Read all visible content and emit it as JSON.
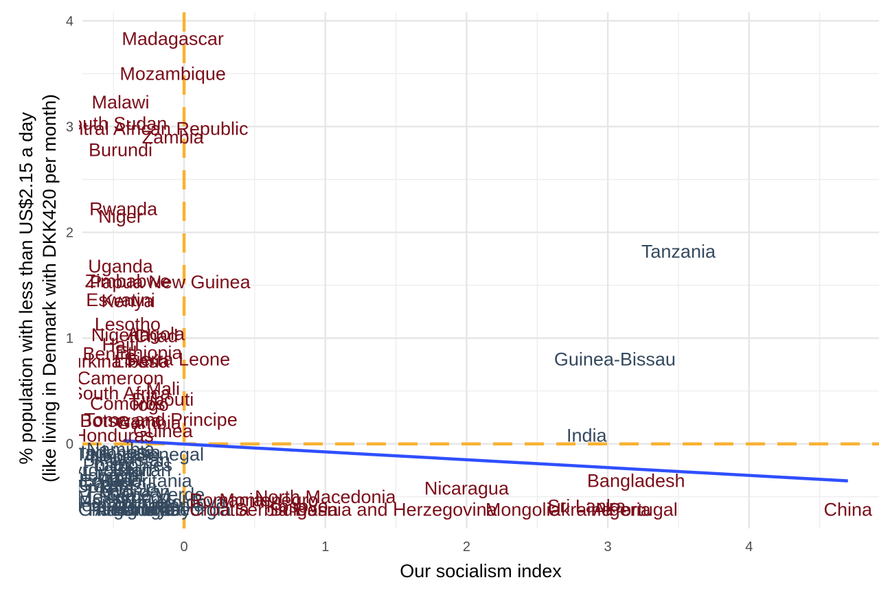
{
  "chart_data": {
    "type": "scatter",
    "title": "",
    "xlabel": "Our socialism index",
    "ylabel_lines": [
      "% population with less than US$2.15 a day",
      "(like living in Denmark with DKK420 per month)"
    ],
    "xlim": [
      -0.72,
      4.92
    ],
    "ylim": [
      -0.8,
      4.08
    ],
    "x_ticks": [
      0,
      1,
      2,
      3,
      4
    ],
    "y_ticks": [
      0,
      1,
      2,
      3,
      4
    ],
    "grid": true,
    "reference_lines": {
      "x": 0,
      "y": 0,
      "color": "#F9B233",
      "style": "dashed"
    },
    "trend_line": {
      "x": [
        -0.43,
        4.7
      ],
      "y": [
        0.03,
        -0.35
      ],
      "color": "#2F4FFF"
    },
    "colors": {
      "dark_red": "#7B0E1A",
      "slate": "#34495E"
    },
    "points": [
      {
        "label": "Madagascar",
        "x": -0.08,
        "y": 3.83,
        "color": "dark_red"
      },
      {
        "label": "Mozambique",
        "x": -0.08,
        "y": 3.5,
        "color": "dark_red"
      },
      {
        "label": "Malawi",
        "x": -0.45,
        "y": 3.23,
        "color": "dark_red"
      },
      {
        "label": "South Sudan",
        "x": -0.5,
        "y": 3.03,
        "color": "dark_red"
      },
      {
        "label": "Central African Republic",
        "x": -0.25,
        "y": 2.98,
        "color": "dark_red"
      },
      {
        "label": "Zambia",
        "x": -0.08,
        "y": 2.9,
        "color": "dark_red"
      },
      {
        "label": "Burundi",
        "x": -0.45,
        "y": 2.78,
        "color": "dark_red"
      },
      {
        "label": "Rwanda",
        "x": -0.43,
        "y": 2.22,
        "color": "dark_red"
      },
      {
        "label": "Niger",
        "x": -0.45,
        "y": 2.15,
        "color": "dark_red"
      },
      {
        "label": "Tanzania",
        "x": 3.5,
        "y": 1.82,
        "color": "slate"
      },
      {
        "label": "Uganda",
        "x": -0.45,
        "y": 1.68,
        "color": "dark_red"
      },
      {
        "label": "Zimbabwe",
        "x": -0.4,
        "y": 1.54,
        "color": "dark_red"
      },
      {
        "label": "Papua New Guinea",
        "x": -0.1,
        "y": 1.53,
        "color": "dark_red"
      },
      {
        "label": "Eswatini",
        "x": -0.45,
        "y": 1.36,
        "color": "dark_red"
      },
      {
        "label": "Kenya",
        "x": -0.4,
        "y": 1.35,
        "color": "dark_red"
      },
      {
        "label": "Lesotho",
        "x": -0.4,
        "y": 1.13,
        "color": "dark_red"
      },
      {
        "label": "Angola",
        "x": -0.2,
        "y": 1.04,
        "color": "dark_red"
      },
      {
        "label": "Nigeria",
        "x": -0.45,
        "y": 1.03,
        "color": "dark_red"
      },
      {
        "label": "Chad",
        "x": -0.2,
        "y": 1.02,
        "color": "dark_red"
      },
      {
        "label": "Haiti",
        "x": -0.45,
        "y": 0.94,
        "color": "dark_red"
      },
      {
        "label": "Ethiopia",
        "x": -0.25,
        "y": 0.86,
        "color": "dark_red"
      },
      {
        "label": "Benin",
        "x": -0.55,
        "y": 0.85,
        "color": "dark_red"
      },
      {
        "label": "Sierra Leone",
        "x": -0.05,
        "y": 0.8,
        "color": "dark_red"
      },
      {
        "label": "Burkina Faso",
        "x": -0.5,
        "y": 0.78,
        "color": "dark_red"
      },
      {
        "label": "Liberia",
        "x": -0.3,
        "y": 0.78,
        "color": "dark_red"
      },
      {
        "label": "Guinea-Bissau",
        "x": 3.05,
        "y": 0.8,
        "color": "slate"
      },
      {
        "label": "Cameroon",
        "x": -0.45,
        "y": 0.62,
        "color": "dark_red"
      },
      {
        "label": "South Africa",
        "x": -0.45,
        "y": 0.48,
        "color": "dark_red"
      },
      {
        "label": "Mali",
        "x": -0.15,
        "y": 0.52,
        "color": "dark_red"
      },
      {
        "label": "Djibouti",
        "x": -0.15,
        "y": 0.42,
        "color": "dark_red"
      },
      {
        "label": "Comoros",
        "x": -0.4,
        "y": 0.38,
        "color": "dark_red"
      },
      {
        "label": "Togo",
        "x": -0.25,
        "y": 0.37,
        "color": "dark_red"
      },
      {
        "label": "Sao Tome and Principe",
        "x": -0.3,
        "y": 0.23,
        "color": "dark_red"
      },
      {
        "label": "Botswana",
        "x": -0.45,
        "y": 0.22,
        "color": "dark_red"
      },
      {
        "label": "Gambia",
        "x": -0.25,
        "y": 0.2,
        "color": "dark_red"
      },
      {
        "label": "Guinea",
        "x": -0.15,
        "y": 0.12,
        "color": "dark_red"
      },
      {
        "label": "Honduras",
        "x": -0.5,
        "y": 0.08,
        "color": "dark_red"
      },
      {
        "label": "India",
        "x": 2.85,
        "y": 0.08,
        "color": "slate"
      },
      {
        "label": "Senegal",
        "x": -0.1,
        "y": -0.1,
        "color": "slate"
      },
      {
        "label": "Nepal",
        "x": -0.5,
        "y": -0.12,
        "color": "slate"
      },
      {
        "label": "Mauritania",
        "x": -0.25,
        "y": -0.35,
        "color": "slate"
      },
      {
        "label": "Ghana",
        "x": -0.55,
        "y": -0.38,
        "color": "slate"
      },
      {
        "label": "Cape Verde",
        "x": -0.2,
        "y": -0.48,
        "color": "slate"
      },
      {
        "label": "Bangladesh",
        "x": 3.2,
        "y": -0.35,
        "color": "dark_red"
      },
      {
        "label": "Nicaragua",
        "x": 2.0,
        "y": -0.42,
        "color": "dark_red"
      },
      {
        "label": "North Macedonia",
        "x": 1.0,
        "y": -0.5,
        "color": "dark_red"
      },
      {
        "label": "Romania",
        "x": 0.3,
        "y": -0.53,
        "color": "dark_red"
      },
      {
        "label": "Montenegro",
        "x": 0.6,
        "y": -0.53,
        "color": "dark_red"
      },
      {
        "label": "Kosovo",
        "x": 0.8,
        "y": -0.59,
        "color": "dark_red"
      },
      {
        "label": "Sri Lanka",
        "x": 2.85,
        "y": -0.59,
        "color": "dark_red"
      },
      {
        "label": "Algeria",
        "x": 3.1,
        "y": -0.62,
        "color": "dark_red"
      },
      {
        "label": "Bosnia and Herzegovina",
        "x": 1.5,
        "y": -0.62,
        "color": "dark_red"
      },
      {
        "label": "Mongolia",
        "x": 2.4,
        "y": -0.62,
        "color": "dark_red"
      },
      {
        "label": "Ukraine",
        "x": 2.8,
        "y": -0.62,
        "color": "dark_red"
      },
      {
        "label": "Portugal",
        "x": 3.25,
        "y": -0.62,
        "color": "dark_red"
      },
      {
        "label": "China",
        "x": 4.7,
        "y": -0.62,
        "color": "dark_red"
      },
      {
        "label": "Serbia",
        "x": 0.55,
        "y": -0.62,
        "color": "dark_red"
      },
      {
        "label": "Croatia",
        "x": 0.25,
        "y": -0.62,
        "color": "dark_red"
      },
      {
        "label": "Bulgaria",
        "x": 0.85,
        "y": -0.62,
        "color": "dark_red"
      }
    ],
    "dense_clusters": [
      {
        "label": "Paraguay",
        "x": -0.4,
        "y": -0.62,
        "color": "slate"
      },
      {
        "label": "Bolivia",
        "x": -0.3,
        "y": -0.6,
        "color": "slate"
      },
      {
        "label": "Uruguay",
        "x": -0.2,
        "y": -0.62,
        "color": "slate"
      },
      {
        "label": "Panama",
        "x": -0.5,
        "y": -0.55,
        "color": "slate"
      },
      {
        "label": "Egypt",
        "x": -0.45,
        "y": -0.3,
        "color": "slate"
      },
      {
        "label": "Tunisia",
        "x": -0.4,
        "y": -0.4,
        "color": "slate"
      },
      {
        "label": "Morocco",
        "x": -0.35,
        "y": -0.5,
        "color": "slate"
      },
      {
        "label": "Jordan",
        "x": -0.3,
        "y": -0.45,
        "color": "slate"
      },
      {
        "label": "Armenia",
        "x": -0.1,
        "y": -0.58,
        "color": "slate"
      },
      {
        "label": "Georgia",
        "x": 0.1,
        "y": -0.62,
        "color": "slate"
      },
      {
        "label": "Moldova",
        "x": 0.05,
        "y": -0.55,
        "color": "slate"
      },
      {
        "label": "Thailand",
        "x": -0.45,
        "y": -0.62,
        "color": "slate"
      },
      {
        "label": "Vietnam",
        "x": -0.6,
        "y": -0.58,
        "color": "slate"
      },
      {
        "label": "Peru",
        "x": -0.55,
        "y": -0.45,
        "color": "slate"
      },
      {
        "label": "Ecuador",
        "x": -0.5,
        "y": -0.35,
        "color": "slate"
      },
      {
        "label": "Colombia",
        "x": -0.6,
        "y": -0.3,
        "color": "slate"
      },
      {
        "label": "Brazil",
        "x": -0.6,
        "y": -0.4,
        "color": "slate"
      },
      {
        "label": "Mexico",
        "x": -0.55,
        "y": -0.5,
        "color": "slate"
      },
      {
        "label": "Chile",
        "x": -0.6,
        "y": -0.62,
        "color": "slate"
      },
      {
        "label": "Argentina",
        "x": -0.35,
        "y": -0.62,
        "color": "slate"
      },
      {
        "label": "Turkey",
        "x": -0.25,
        "y": -0.55,
        "color": "slate"
      },
      {
        "label": "Iran",
        "x": -0.1,
        "y": -0.62,
        "color": "slate"
      },
      {
        "label": "Indonesia",
        "x": -0.45,
        "y": -0.08,
        "color": "slate"
      },
      {
        "label": "Philippines",
        "x": -0.4,
        "y": -0.2,
        "color": "slate"
      },
      {
        "label": "Pakistan",
        "x": -0.35,
        "y": -0.15,
        "color": "slate"
      },
      {
        "label": "Laos",
        "x": -0.5,
        "y": -0.2,
        "color": "slate"
      },
      {
        "label": "Bhutan",
        "x": -0.3,
        "y": -0.25,
        "color": "slate"
      },
      {
        "label": "Namibia",
        "x": -0.45,
        "y": -0.05,
        "color": "slate"
      },
      {
        "label": "Kyrgyzstan",
        "x": -0.55,
        "y": -0.25,
        "color": "slate"
      },
      {
        "label": "Tajikistan",
        "x": -0.5,
        "y": -0.1,
        "color": "slate"
      }
    ]
  }
}
